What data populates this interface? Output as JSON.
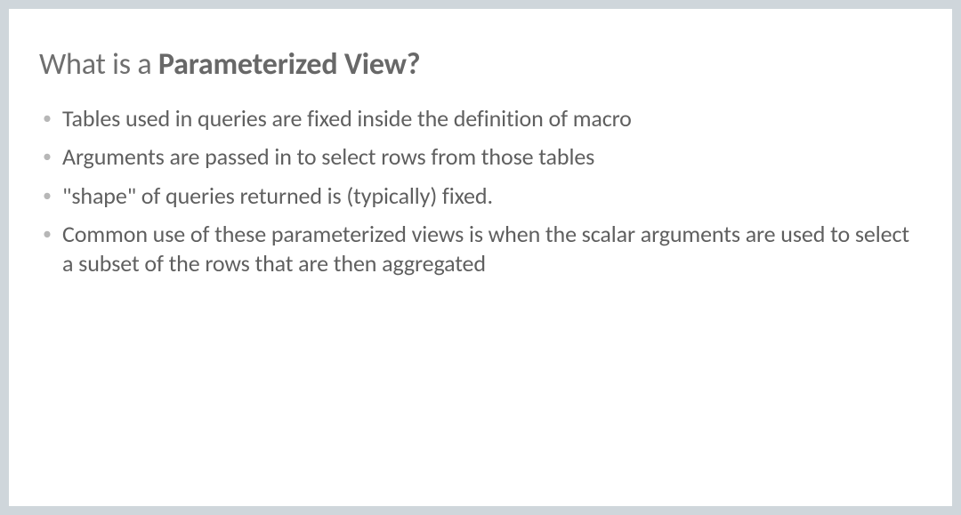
{
  "slide": {
    "background_color": "#ffffff",
    "outer_background_color": "#cfd6db",
    "title": {
      "prefix": "What is a ",
      "bold_part": "Parameterized View?",
      "color": "#6f6f6f",
      "bold_color": "#686868",
      "font_size_pt": 25
    },
    "bullets": {
      "items": [
        "Tables used in queries are fixed inside the definition of macro",
        "Arguments are passed in to select rows from those tables",
        "\"shape\" of queries returned is (typically) fixed.",
        "Common use of these parameterized views is when the scalar arguments are used to select a subset of the rows that are then aggregated"
      ],
      "text_color": "#5f5f5f",
      "bullet_marker_color": "#b7b7b7",
      "font_size_pt": 19
    }
  }
}
